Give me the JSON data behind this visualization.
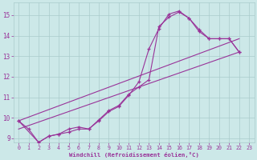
{
  "bg_color": "#cce8e8",
  "grid_color": "#aacccc",
  "line_color": "#993399",
  "xlabel": "Windchill (Refroidissement éolien,°C)",
  "xlim": [
    -0.5,
    23.5
  ],
  "ylim": [
    8.8,
    15.6
  ],
  "yticks": [
    9,
    10,
    11,
    12,
    13,
    14,
    15
  ],
  "xticks": [
    0,
    1,
    2,
    3,
    4,
    5,
    6,
    7,
    8,
    9,
    10,
    11,
    12,
    13,
    14,
    15,
    16,
    17,
    18,
    19,
    20,
    21,
    22,
    23
  ],
  "s1x": [
    0,
    1,
    2,
    3,
    4,
    5,
    6,
    7,
    8,
    9,
    10,
    11,
    12,
    13,
    14,
    15,
    16,
    17,
    18,
    19,
    20,
    21,
    22
  ],
  "s1y": [
    9.85,
    9.45,
    8.8,
    9.1,
    9.2,
    9.3,
    9.45,
    9.45,
    9.85,
    10.3,
    10.55,
    11.1,
    11.75,
    13.35,
    14.35,
    15.05,
    15.2,
    14.85,
    14.2,
    13.85,
    13.85,
    13.85,
    13.2
  ],
  "s2x": [
    0,
    2,
    3,
    4,
    5,
    6,
    7,
    8,
    9,
    10,
    11,
    12,
    13,
    14,
    15,
    16,
    17,
    18,
    19,
    20,
    21,
    22
  ],
  "s2y": [
    9.85,
    8.8,
    9.1,
    9.2,
    9.45,
    9.55,
    9.45,
    9.9,
    10.35,
    10.6,
    11.15,
    11.5,
    11.85,
    14.45,
    14.9,
    15.15,
    14.85,
    14.3,
    13.85,
    13.85,
    13.85,
    13.2
  ],
  "t1x": [
    0,
    22
  ],
  "t1y": [
    9.45,
    13.2
  ],
  "t2x": [
    0,
    22
  ],
  "t2y": [
    9.85,
    13.85
  ]
}
